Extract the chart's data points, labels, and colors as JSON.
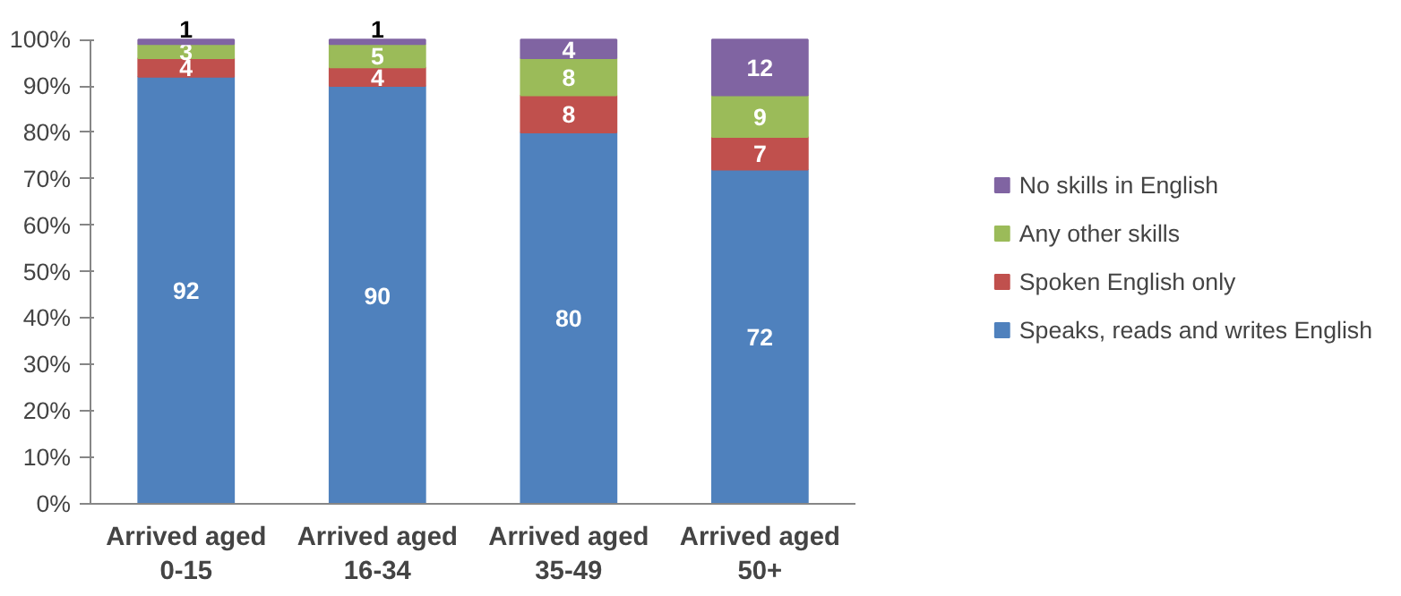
{
  "chart_data": {
    "type": "bar",
    "stacked": true,
    "categories": [
      "Arrived aged\n0-15",
      "Arrived aged\n16-34",
      "Arrived aged\n35-49",
      "Arrived aged\n50+"
    ],
    "series": [
      {
        "name": "Speaks, reads and writes English",
        "color": "#4f81bd",
        "values": [
          92,
          90,
          80,
          72
        ]
      },
      {
        "name": "Spoken English only",
        "color": "#c0504d",
        "values": [
          4,
          4,
          8,
          7
        ]
      },
      {
        "name": "Any other skills",
        "color": "#9bbb59",
        "values": [
          3,
          5,
          8,
          9
        ]
      },
      {
        "name": "No skills in English",
        "color": "#8064a2",
        "values": [
          1,
          1,
          4,
          12
        ]
      }
    ],
    "ylim": [
      0,
      100
    ],
    "yticks": [
      {
        "value": 0,
        "label": "0%"
      },
      {
        "value": 10,
        "label": "10%"
      },
      {
        "value": 20,
        "label": "20%"
      },
      {
        "value": 30,
        "label": "30%"
      },
      {
        "value": 40,
        "label": "40%"
      },
      {
        "value": 50,
        "label": "50%"
      },
      {
        "value": 60,
        "label": "60%"
      },
      {
        "value": 70,
        "label": "70%"
      },
      {
        "value": 80,
        "label": "80%"
      },
      {
        "value": 90,
        "label": "90%"
      },
      {
        "value": 100,
        "label": "100%"
      }
    ],
    "data_labels": true,
    "grid": false,
    "legend": "right"
  }
}
